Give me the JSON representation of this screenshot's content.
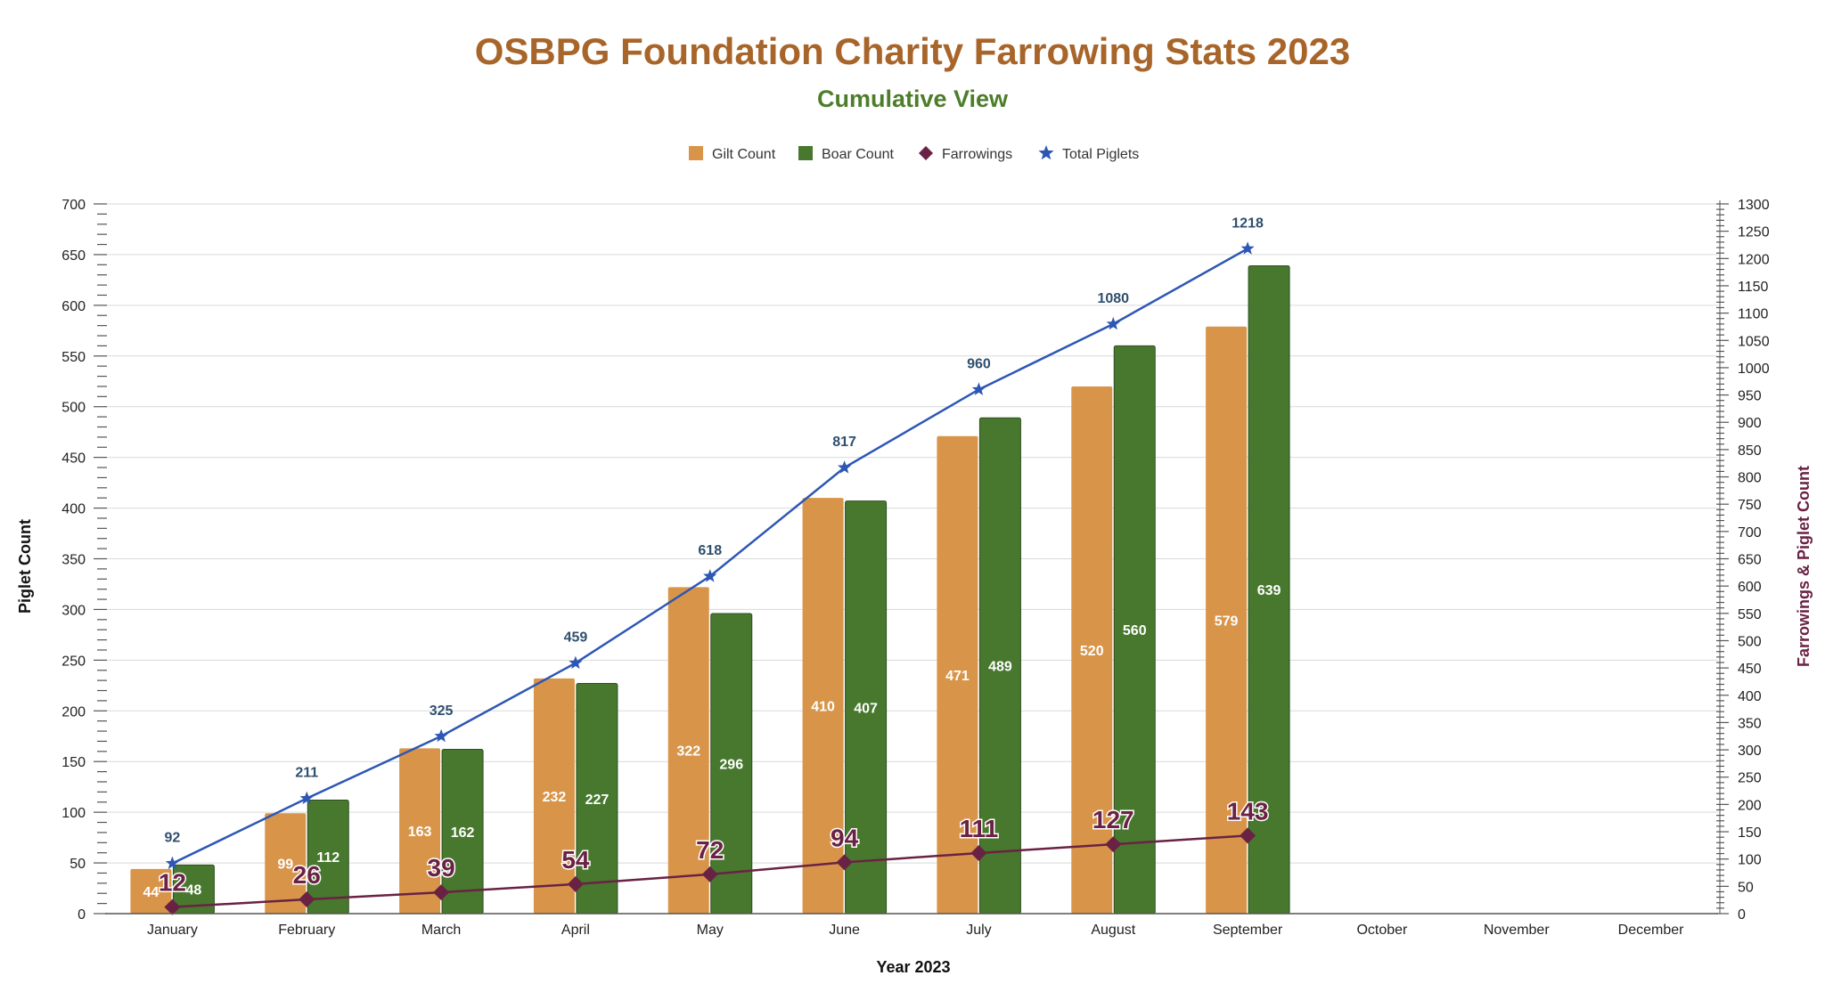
{
  "chart_data": {
    "type": "bar",
    "title": "OSBPG Foundation Charity Farrowing Stats 2023",
    "subtitle": "Cumulative View",
    "xlabel": "Year 2023",
    "ylabel": "Piglet Count",
    "y2label": "Farrowings & Piglet Count",
    "ylim": [
      0,
      700
    ],
    "y2lim": [
      0,
      1300
    ],
    "yticks": [
      0,
      50,
      100,
      150,
      200,
      250,
      300,
      350,
      400,
      450,
      500,
      550,
      600,
      650,
      700
    ],
    "y2ticks": [
      0,
      50,
      100,
      150,
      200,
      250,
      300,
      350,
      400,
      450,
      500,
      550,
      600,
      650,
      700,
      750,
      800,
      850,
      900,
      950,
      1000,
      1050,
      1100,
      1150,
      1200,
      1250,
      1300
    ],
    "grid": true,
    "legend_position": "top-center",
    "categories": [
      "January",
      "February",
      "March",
      "April",
      "May",
      "June",
      "July",
      "August",
      "September",
      "October",
      "November",
      "December"
    ],
    "series": [
      {
        "name": "Gilt Count",
        "type": "bar",
        "axis": "left",
        "color": "#d8954a",
        "values": [
          44,
          99,
          163,
          232,
          322,
          410,
          471,
          520,
          579,
          null,
          null,
          null
        ]
      },
      {
        "name": "Boar Count",
        "type": "bar",
        "axis": "left",
        "color": "#47782e",
        "values": [
          48,
          112,
          162,
          227,
          296,
          407,
          489,
          560,
          639,
          null,
          null,
          null
        ]
      },
      {
        "name": "Farrowings",
        "type": "line",
        "axis": "right",
        "color": "#6a2244",
        "marker": "diamond",
        "values": [
          12,
          26,
          39,
          54,
          72,
          94,
          111,
          127,
          143,
          null,
          null,
          null
        ]
      },
      {
        "name": "Total Piglets",
        "type": "line",
        "axis": "right",
        "color": "#2d57b5",
        "marker": "star",
        "label_color": "#2f4f6e",
        "values": [
          92,
          211,
          325,
          459,
          618,
          817,
          960,
          1080,
          1218,
          null,
          null,
          null
        ]
      }
    ]
  }
}
